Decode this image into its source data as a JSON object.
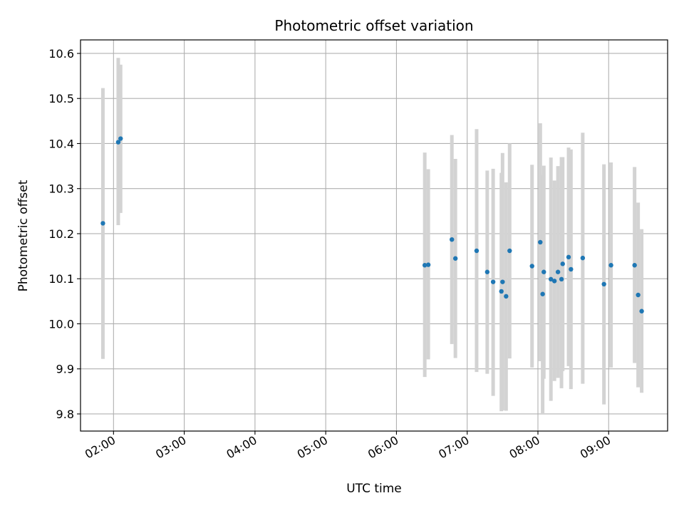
{
  "chart_data": {
    "type": "scatter",
    "title": "Photometric offset variation",
    "xlabel": "UTC time",
    "ylabel": "Photometric offset",
    "xlim": [
      "01:32",
      "09:50"
    ],
    "ylim": [
      9.762,
      10.63
    ],
    "grid": true,
    "x_ticks": [
      "02:00",
      "03:00",
      "04:00",
      "05:00",
      "06:00",
      "07:00",
      "08:00",
      "09:00"
    ],
    "y_ticks": [
      "9.8",
      "9.9",
      "10.0",
      "10.1",
      "10.2",
      "10.3",
      "10.4",
      "10.5",
      "10.6"
    ],
    "series": [
      {
        "point_color": "#1f77b4",
        "errorbar_color": "#d3d3d3",
        "points": [
          {
            "x": "01:51",
            "y": 10.223,
            "low": 9.922,
            "high": 10.523
          },
          {
            "x": "02:04",
            "y": 10.403,
            "low": 10.219,
            "high": 10.59
          },
          {
            "x": "02:06",
            "y": 10.411,
            "low": 10.246,
            "high": 10.575
          },
          {
            "x": "06:24",
            "y": 10.13,
            "low": 9.882,
            "high": 10.38
          },
          {
            "x": "06:27",
            "y": 10.131,
            "low": 9.921,
            "high": 10.343
          },
          {
            "x": "06:47",
            "y": 10.187,
            "low": 9.955,
            "high": 10.419
          },
          {
            "x": "06:50",
            "y": 10.145,
            "low": 9.924,
            "high": 10.366
          },
          {
            "x": "07:08",
            "y": 10.162,
            "low": 9.893,
            "high": 10.432
          },
          {
            "x": "07:17",
            "y": 10.115,
            "low": 9.889,
            "high": 10.34
          },
          {
            "x": "07:22",
            "y": 10.093,
            "low": 9.84,
            "high": 10.344
          },
          {
            "x": "07:29",
            "y": 10.072,
            "low": 9.806,
            "high": 10.335
          },
          {
            "x": "07:30",
            "y": 10.093,
            "low": 9.808,
            "high": 10.379
          },
          {
            "x": "07:33",
            "y": 10.061,
            "low": 9.807,
            "high": 10.314
          },
          {
            "x": "07:36",
            "y": 10.162,
            "low": 9.923,
            "high": 10.4
          },
          {
            "x": "07:55",
            "y": 10.128,
            "low": 9.903,
            "high": 10.353
          },
          {
            "x": "08:02",
            "y": 10.181,
            "low": 9.917,
            "high": 10.445
          },
          {
            "x": "08:04",
            "y": 10.066,
            "low": 9.8,
            "high": 10.33
          },
          {
            "x": "08:05",
            "y": 10.115,
            "low": 9.878,
            "high": 10.351
          },
          {
            "x": "08:11",
            "y": 10.099,
            "low": 9.829,
            "high": 10.369
          },
          {
            "x": "08:14",
            "y": 10.095,
            "low": 9.873,
            "high": 10.318
          },
          {
            "x": "08:17",
            "y": 10.115,
            "low": 9.88,
            "high": 10.35
          },
          {
            "x": "08:20",
            "y": 10.099,
            "low": 9.857,
            "high": 10.37
          },
          {
            "x": "08:21",
            "y": 10.133,
            "low": 9.895,
            "high": 10.37
          },
          {
            "x": "08:26",
            "y": 10.148,
            "low": 9.906,
            "high": 10.391
          },
          {
            "x": "08:28",
            "y": 10.121,
            "low": 9.855,
            "high": 10.387
          },
          {
            "x": "08:38",
            "y": 10.146,
            "low": 9.867,
            "high": 10.424
          },
          {
            "x": "08:56",
            "y": 10.088,
            "low": 9.821,
            "high": 10.354
          },
          {
            "x": "09:02",
            "y": 10.13,
            "low": 9.903,
            "high": 10.358
          },
          {
            "x": "09:22",
            "y": 10.13,
            "low": 9.913,
            "high": 10.348
          },
          {
            "x": "09:25",
            "y": 10.064,
            "low": 9.859,
            "high": 10.269
          },
          {
            "x": "09:28",
            "y": 10.028,
            "low": 9.847,
            "high": 10.21
          }
        ]
      }
    ]
  }
}
